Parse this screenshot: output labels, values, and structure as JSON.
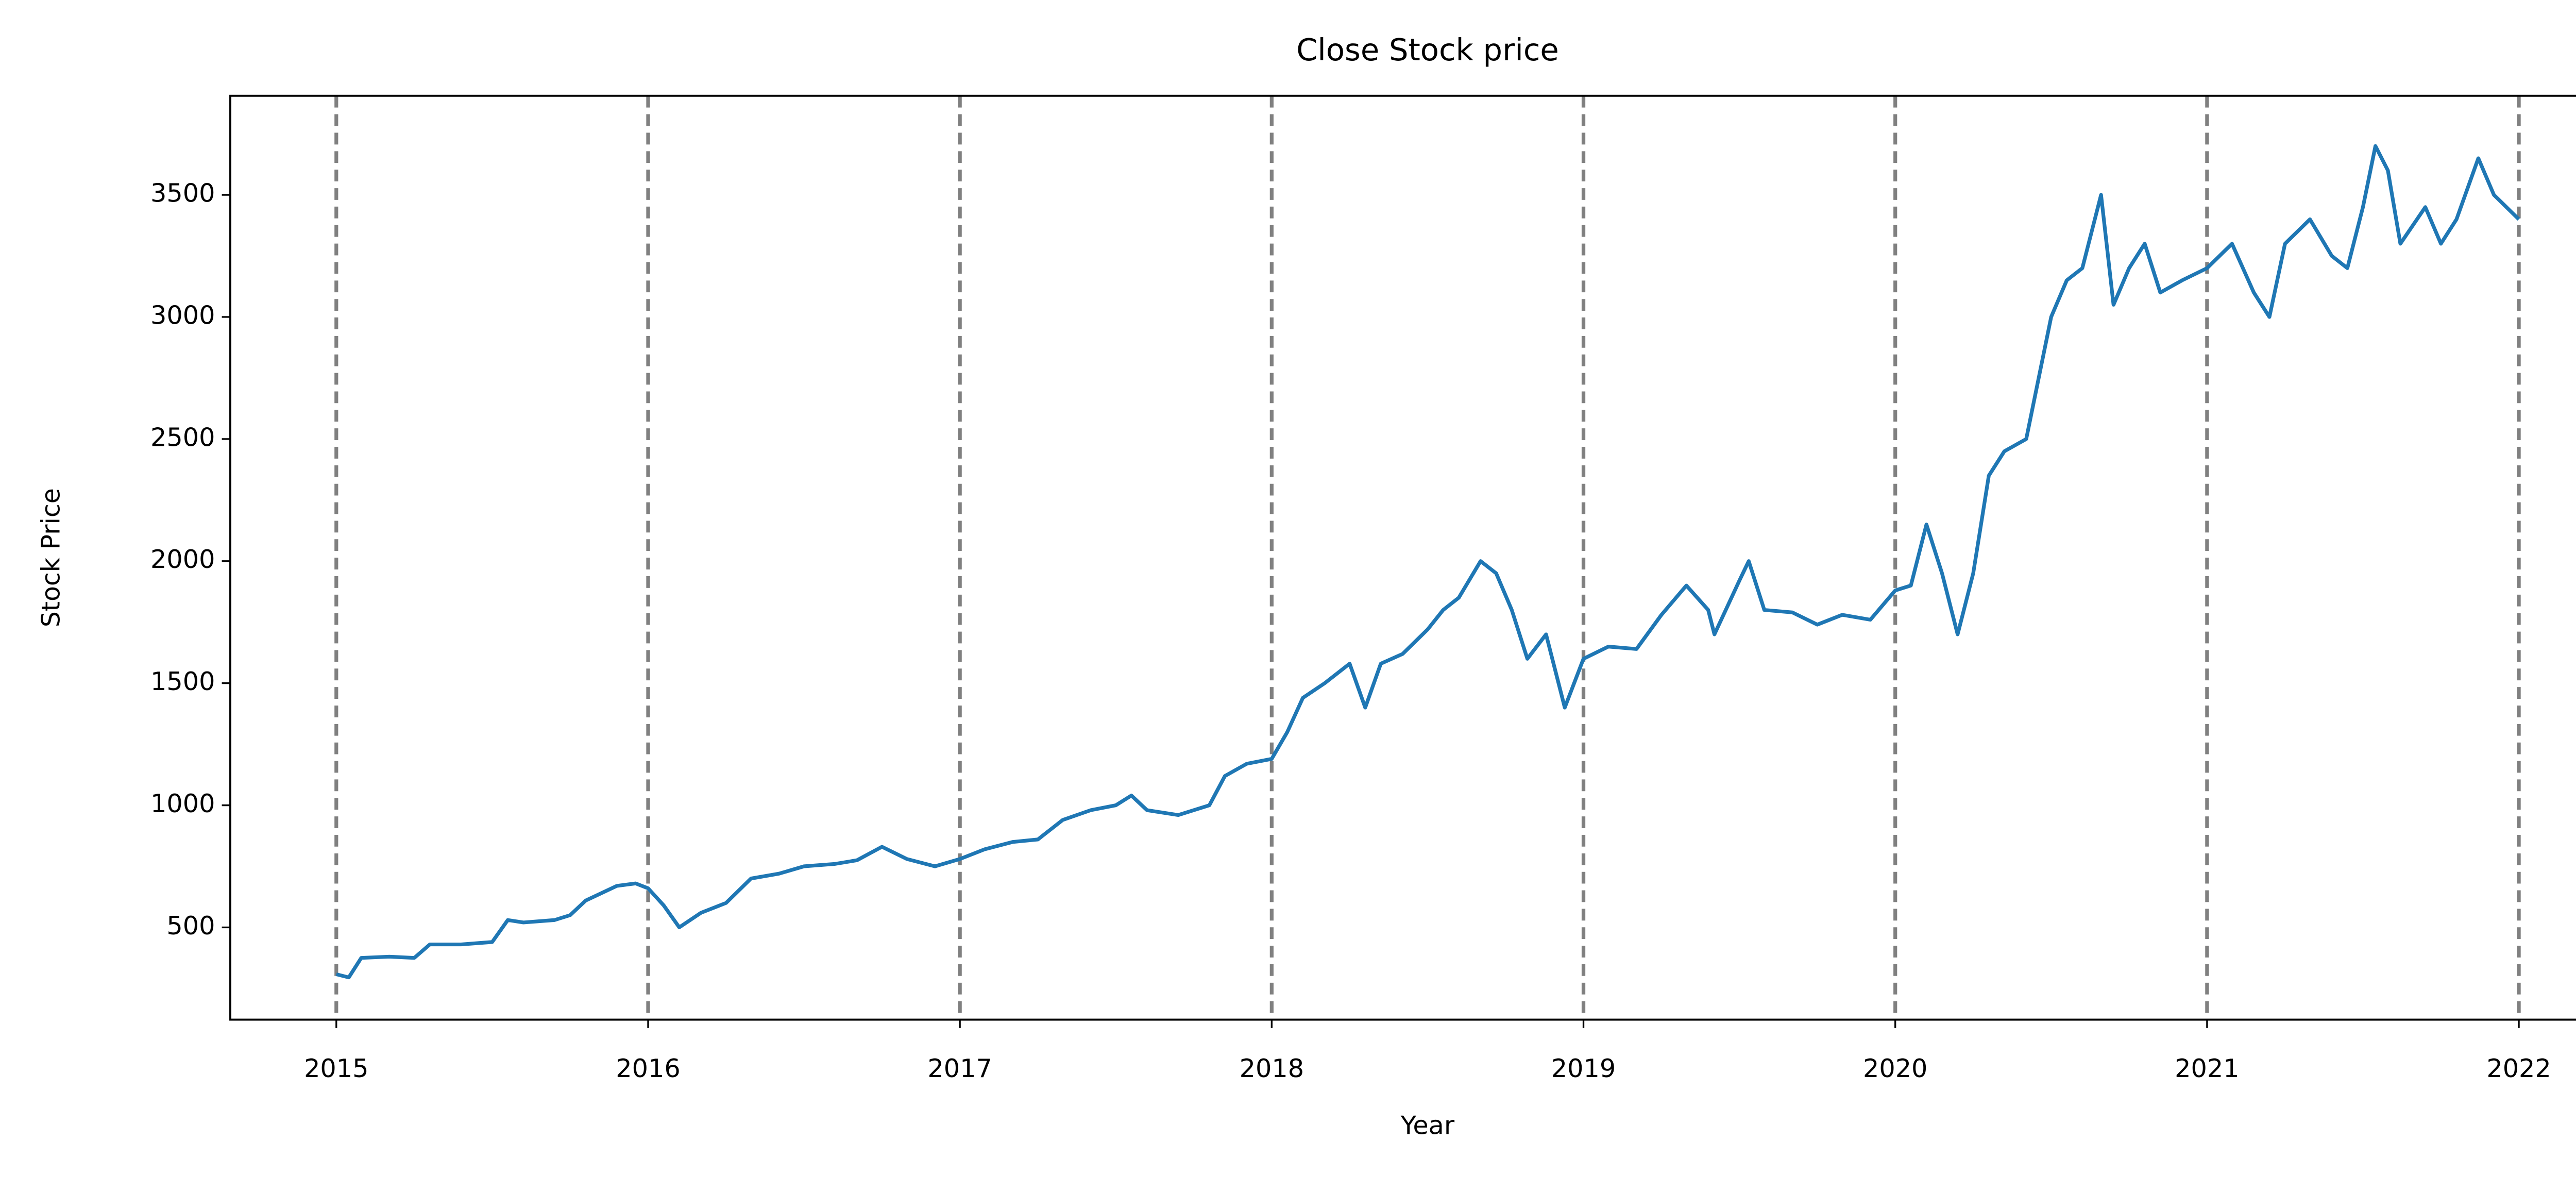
{
  "chart_data": {
    "type": "line",
    "title": "Close Stock price",
    "xlabel": "Year",
    "ylabel": "Stock Price",
    "x": [
      2015.0,
      2015.04,
      2015.08,
      2015.17,
      2015.25,
      2015.3,
      2015.4,
      2015.5,
      2015.55,
      2015.6,
      2015.7,
      2015.75,
      2015.8,
      2015.9,
      2015.96,
      2016.0,
      2016.05,
      2016.1,
      2016.17,
      2016.25,
      2016.33,
      2016.42,
      2016.5,
      2016.6,
      2016.67,
      2016.75,
      2016.83,
      2016.92,
      2017.0,
      2017.08,
      2017.17,
      2017.25,
      2017.33,
      2017.42,
      2017.5,
      2017.55,
      2017.6,
      2017.7,
      2017.8,
      2017.85,
      2017.92,
      2018.0,
      2018.05,
      2018.1,
      2018.17,
      2018.25,
      2018.3,
      2018.35,
      2018.42,
      2018.5,
      2018.55,
      2018.6,
      2018.67,
      2018.72,
      2018.77,
      2018.82,
      2018.88,
      2018.94,
      2019.0,
      2019.08,
      2019.17,
      2019.25,
      2019.33,
      2019.4,
      2019.42,
      2019.5,
      2019.53,
      2019.58,
      2019.67,
      2019.75,
      2019.83,
      2019.92,
      2020.0,
      2020.05,
      2020.1,
      2020.15,
      2020.2,
      2020.25,
      2020.3,
      2020.35,
      2020.42,
      2020.5,
      2020.55,
      2020.6,
      2020.66,
      2020.7,
      2020.75,
      2020.8,
      2020.85,
      2020.92,
      2021.0,
      2021.08,
      2021.15,
      2021.2,
      2021.25,
      2021.33,
      2021.4,
      2021.45,
      2021.5,
      2021.54,
      2021.58,
      2021.62,
      2021.7,
      2021.75,
      2021.8,
      2021.87,
      2021.92,
      2022.0
    ],
    "values": [
      308,
      295,
      375,
      380,
      375,
      430,
      430,
      440,
      530,
      520,
      530,
      550,
      610,
      670,
      680,
      660,
      590,
      500,
      560,
      600,
      700,
      720,
      750,
      760,
      775,
      830,
      780,
      750,
      780,
      820,
      850,
      860,
      940,
      980,
      1000,
      1040,
      980,
      960,
      1000,
      1120,
      1170,
      1190,
      1300,
      1440,
      1500,
      1580,
      1400,
      1580,
      1620,
      1720,
      1800,
      1850,
      2000,
      1950,
      1800,
      1600,
      1700,
      1400,
      1600,
      1650,
      1640,
      1780,
      1900,
      1800,
      1700,
      1920,
      2000,
      1800,
      1790,
      1740,
      1780,
      1760,
      1880,
      1900,
      2150,
      1950,
      1700,
      1950,
      2350,
      2450,
      2500,
      3000,
      3150,
      3200,
      3500,
      3050,
      3200,
      3300,
      3100,
      3150,
      3200,
      3300,
      3100,
      3000,
      3300,
      3400,
      3250,
      3200,
      3450,
      3700,
      3600,
      3300,
      3450,
      3300,
      3400,
      3650,
      3500,
      3400
    ],
    "color": "#1f77b4",
    "xlim": [
      2014.66,
      2022.34
    ],
    "xticks": [
      2015,
      2016,
      2017,
      2018,
      2019,
      2020,
      2021,
      2022
    ],
    "ylim": [
      122,
      3906
    ],
    "yticks": [
      500,
      1000,
      1500,
      2000,
      2500,
      3000,
      3500
    ],
    "vlines": [
      2015,
      2016,
      2017,
      2018,
      2019,
      2020,
      2021,
      2022
    ],
    "vline_color": "#808080"
  }
}
